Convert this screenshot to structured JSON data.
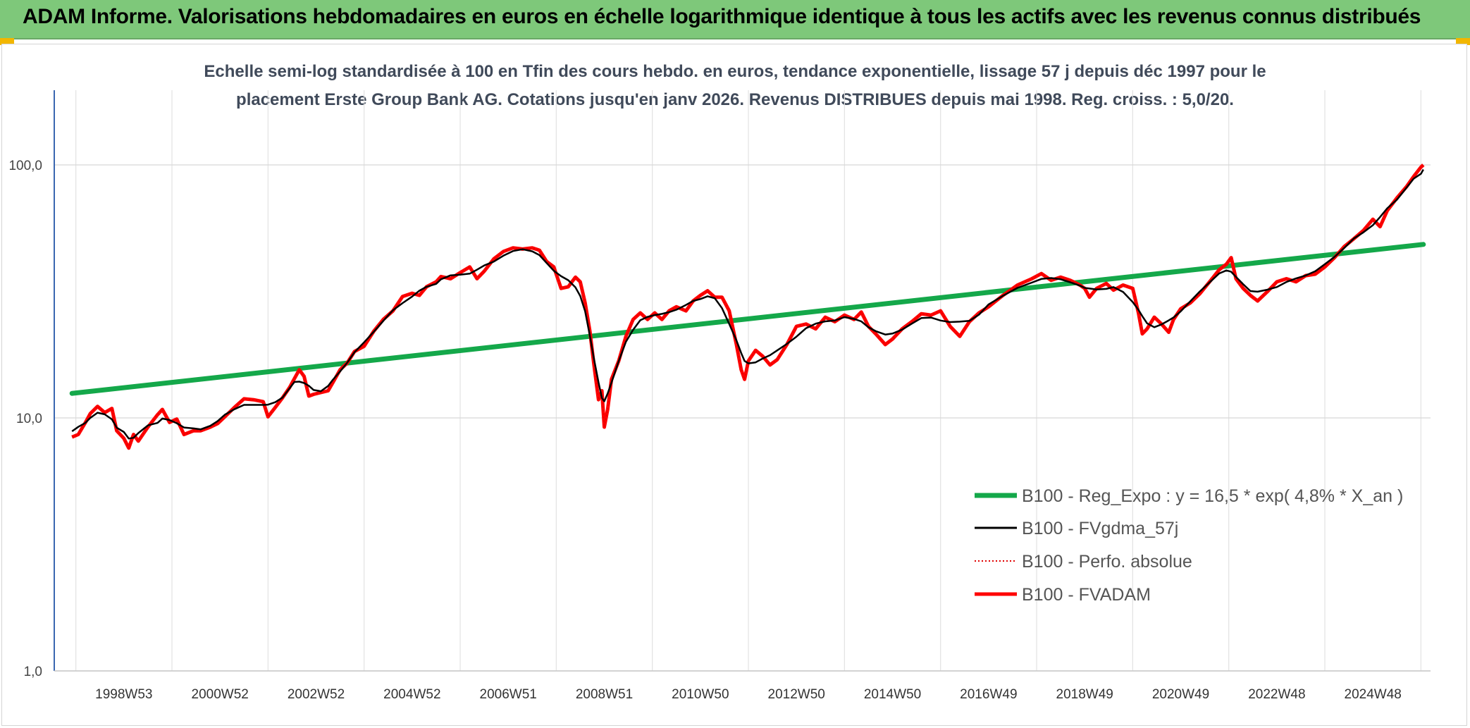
{
  "banner": {
    "title": "ADAM Informe. Valorisations hebdomadaires en euros en échelle logarithmique identique à tous les actifs avec les revenus connus distribués",
    "color": "#7ec87a"
  },
  "chart_data": {
    "type": "line",
    "title_line1": "Echelle semi-log standardisée à 100 en Tfin des cours hebdo. en euros, tendance exponentielle, lissage 57 j depuis déc 1997 pour le",
    "title_line2": "placement Erste Group Bank AG. Cotations jusqu'en janv 2026. Revenus DISTRIBUES depuis mai 1998. Reg. croiss. : 5,0/20.",
    "y_scale": "log",
    "ylim": [
      1,
      100
    ],
    "y_ticks": [
      "1,0",
      "10,0",
      "100,0"
    ],
    "xlim": [
      1997.55,
      2026.2
    ],
    "x_ticks": [
      {
        "label": "1998W53",
        "x": 1999.0
      },
      {
        "label": "2000W52",
        "x": 2001.0
      },
      {
        "label": "2002W52",
        "x": 2003.0
      },
      {
        "label": "2004W52",
        "x": 2005.0
      },
      {
        "label": "2006W51",
        "x": 2007.0
      },
      {
        "label": "2008W51",
        "x": 2009.0
      },
      {
        "label": "2010W50",
        "x": 2011.0
      },
      {
        "label": "2012W50",
        "x": 2013.0
      },
      {
        "label": "2014W50",
        "x": 2015.0
      },
      {
        "label": "2016W49",
        "x": 2017.0
      },
      {
        "label": "2018W49",
        "x": 2019.0
      },
      {
        "label": "2020W49",
        "x": 2021.0
      },
      {
        "label": "2022W48",
        "x": 2023.0
      },
      {
        "label": "2024W48",
        "x": 2025.0
      }
    ],
    "grid": true,
    "legend_position": "bottom-right",
    "series": [
      {
        "name": "B100 - Reg_Expo : y = 16,5 * exp( 4,8% *  X_an )",
        "color": "#14a84a",
        "style": "solid-thick",
        "points": [
          [
            1997.92,
            12.5
          ],
          [
            2026.05,
            48.5
          ]
        ]
      },
      {
        "name": "B100 - FVgdma_57j",
        "color": "#000000",
        "style": "solid",
        "smooth": true
      },
      {
        "name": "B100 - Perfo. absolue",
        "color": "#e00000",
        "style": "dotted"
      },
      {
        "name": "B100 - FVADAM",
        "color": "#ff0000",
        "style": "solid-thick",
        "points": [
          [
            1997.92,
            8.4
          ],
          [
            1998.05,
            8.6
          ],
          [
            1998.2,
            9.6
          ],
          [
            1998.3,
            10.4
          ],
          [
            1998.45,
            11.1
          ],
          [
            1998.6,
            10.5
          ],
          [
            1998.75,
            10.9
          ],
          [
            1998.85,
            8.9
          ],
          [
            1999.0,
            8.3
          ],
          [
            1999.1,
            7.6
          ],
          [
            1999.2,
            8.6
          ],
          [
            1999.3,
            8.1
          ],
          [
            1999.5,
            9.2
          ],
          [
            1999.7,
            10.3
          ],
          [
            1999.8,
            10.8
          ],
          [
            1999.95,
            9.6
          ],
          [
            2000.1,
            9.9
          ],
          [
            2000.25,
            8.6
          ],
          [
            2000.45,
            8.9
          ],
          [
            2000.6,
            8.9
          ],
          [
            2000.8,
            9.2
          ],
          [
            2000.95,
            9.5
          ],
          [
            2001.1,
            10.1
          ],
          [
            2001.3,
            11.0
          ],
          [
            2001.5,
            11.9
          ],
          [
            2001.7,
            11.8
          ],
          [
            2001.9,
            11.6
          ],
          [
            2002.0,
            10.1
          ],
          [
            2002.15,
            11.0
          ],
          [
            2002.3,
            12.0
          ],
          [
            2002.45,
            13.2
          ],
          [
            2002.55,
            14.3
          ],
          [
            2002.65,
            15.5
          ],
          [
            2002.75,
            14.6
          ],
          [
            2002.85,
            12.2
          ],
          [
            2002.95,
            12.4
          ],
          [
            2003.1,
            12.6
          ],
          [
            2003.25,
            12.8
          ],
          [
            2003.35,
            13.8
          ],
          [
            2003.5,
            15.5
          ],
          [
            2003.65,
            16.5
          ],
          [
            2003.8,
            18.3
          ],
          [
            2004.0,
            19.2
          ],
          [
            2004.2,
            22.0
          ],
          [
            2004.4,
            24.5
          ],
          [
            2004.6,
            26.5
          ],
          [
            2004.8,
            30.2
          ],
          [
            2005.0,
            31.1
          ],
          [
            2005.15,
            30.5
          ],
          [
            2005.3,
            33.0
          ],
          [
            2005.5,
            34.5
          ],
          [
            2005.6,
            36.2
          ],
          [
            2005.8,
            35.5
          ],
          [
            2006.0,
            37.5
          ],
          [
            2006.2,
            39.5
          ],
          [
            2006.35,
            35.5
          ],
          [
            2006.5,
            38.0
          ],
          [
            2006.7,
            42.5
          ],
          [
            2006.9,
            45.5
          ],
          [
            2007.1,
            47.0
          ],
          [
            2007.3,
            46.5
          ],
          [
            2007.5,
            47.0
          ],
          [
            2007.65,
            46.0
          ],
          [
            2007.8,
            41.5
          ],
          [
            2007.95,
            39.5
          ],
          [
            2008.1,
            32.5
          ],
          [
            2008.25,
            33.0
          ],
          [
            2008.4,
            36.0
          ],
          [
            2008.5,
            34.5
          ],
          [
            2008.6,
            28.5
          ],
          [
            2008.7,
            22.0
          ],
          [
            2008.78,
            16.5
          ],
          [
            2008.88,
            11.8
          ],
          [
            2008.95,
            12.8
          ],
          [
            2009.0,
            9.2
          ],
          [
            2009.07,
            10.8
          ],
          [
            2009.15,
            14.2
          ],
          [
            2009.3,
            16.8
          ],
          [
            2009.45,
            21.0
          ],
          [
            2009.6,
            24.5
          ],
          [
            2009.75,
            26.0
          ],
          [
            2009.9,
            24.5
          ],
          [
            2010.05,
            26.0
          ],
          [
            2010.2,
            24.5
          ],
          [
            2010.35,
            26.5
          ],
          [
            2010.5,
            27.5
          ],
          [
            2010.7,
            26.5
          ],
          [
            2010.85,
            29.0
          ],
          [
            2011.0,
            30.5
          ],
          [
            2011.15,
            31.8
          ],
          [
            2011.3,
            30.0
          ],
          [
            2011.45,
            30.0
          ],
          [
            2011.6,
            26.5
          ],
          [
            2011.75,
            19.5
          ],
          [
            2011.85,
            15.5
          ],
          [
            2011.92,
            14.2
          ],
          [
            2012.0,
            16.8
          ],
          [
            2012.15,
            18.5
          ],
          [
            2012.3,
            17.5
          ],
          [
            2012.45,
            16.2
          ],
          [
            2012.6,
            17.0
          ],
          [
            2012.8,
            19.5
          ],
          [
            2013.0,
            23.0
          ],
          [
            2013.2,
            23.5
          ],
          [
            2013.4,
            22.5
          ],
          [
            2013.6,
            25.0
          ],
          [
            2013.8,
            24.0
          ],
          [
            2014.0,
            25.5
          ],
          [
            2014.2,
            24.5
          ],
          [
            2014.35,
            26.2
          ],
          [
            2014.5,
            23.0
          ],
          [
            2014.65,
            21.5
          ],
          [
            2014.85,
            19.5
          ],
          [
            2015.0,
            20.5
          ],
          [
            2015.2,
            22.5
          ],
          [
            2015.4,
            24.0
          ],
          [
            2015.6,
            25.8
          ],
          [
            2015.8,
            25.5
          ],
          [
            2016.0,
            26.5
          ],
          [
            2016.2,
            23.0
          ],
          [
            2016.4,
            21.0
          ],
          [
            2016.6,
            24.0
          ],
          [
            2016.8,
            26.0
          ],
          [
            2017.0,
            27.5
          ],
          [
            2017.3,
            30.5
          ],
          [
            2017.6,
            33.5
          ],
          [
            2017.9,
            35.5
          ],
          [
            2018.1,
            37.2
          ],
          [
            2018.3,
            35.0
          ],
          [
            2018.5,
            36.0
          ],
          [
            2018.7,
            35.0
          ],
          [
            2018.9,
            33.5
          ],
          [
            2019.0,
            32.5
          ],
          [
            2019.1,
            30.0
          ],
          [
            2019.25,
            32.5
          ],
          [
            2019.45,
            34.0
          ],
          [
            2019.6,
            32.0
          ],
          [
            2019.8,
            33.5
          ],
          [
            2020.0,
            32.5
          ],
          [
            2020.12,
            26.0
          ],
          [
            2020.2,
            21.5
          ],
          [
            2020.3,
            22.5
          ],
          [
            2020.45,
            25.0
          ],
          [
            2020.6,
            23.5
          ],
          [
            2020.75,
            21.8
          ],
          [
            2020.85,
            24.5
          ],
          [
            2021.0,
            27.0
          ],
          [
            2021.2,
            28.5
          ],
          [
            2021.4,
            31.0
          ],
          [
            2021.6,
            34.5
          ],
          [
            2021.8,
            38.5
          ],
          [
            2021.95,
            40.5
          ],
          [
            2022.05,
            43.0
          ],
          [
            2022.15,
            35.5
          ],
          [
            2022.3,
            32.5
          ],
          [
            2022.45,
            30.5
          ],
          [
            2022.6,
            29.0
          ],
          [
            2022.8,
            31.5
          ],
          [
            2023.0,
            34.5
          ],
          [
            2023.2,
            35.5
          ],
          [
            2023.4,
            34.5
          ],
          [
            2023.6,
            36.5
          ],
          [
            2023.8,
            37.0
          ],
          [
            2024.0,
            39.5
          ],
          [
            2024.2,
            43.0
          ],
          [
            2024.4,
            47.5
          ],
          [
            2024.6,
            51.0
          ],
          [
            2024.8,
            55.0
          ],
          [
            2025.0,
            61.0
          ],
          [
            2025.15,
            57.0
          ],
          [
            2025.3,
            66.0
          ],
          [
            2025.5,
            74.0
          ],
          [
            2025.7,
            82.0
          ],
          [
            2025.85,
            90.0
          ],
          [
            2026.0,
            98.0
          ],
          [
            2026.05,
            100.0
          ]
        ]
      }
    ]
  }
}
